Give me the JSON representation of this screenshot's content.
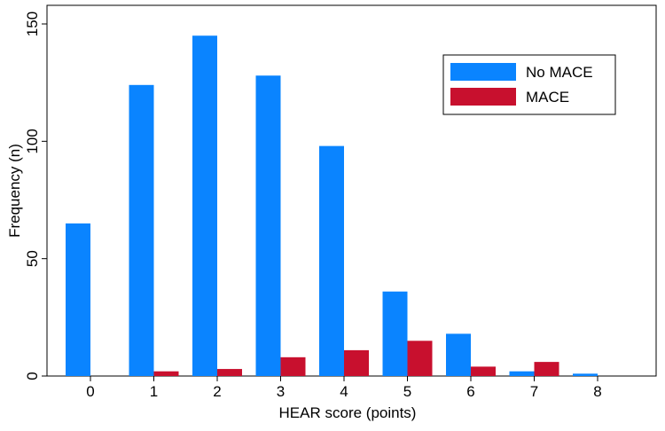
{
  "chart_data": {
    "type": "bar",
    "title": "",
    "xlabel": "HEAR score (points)",
    "ylabel": "Frequency (n)",
    "categories": [
      "0",
      "1",
      "2",
      "3",
      "4",
      "5",
      "6",
      "7",
      "8"
    ],
    "series": [
      {
        "name": "No MACE",
        "color": "#0a84ff",
        "values": [
          65,
          124,
          145,
          128,
          98,
          36,
          18,
          2,
          1
        ]
      },
      {
        "name": "MACE",
        "color": "#c8102e",
        "values": [
          0,
          2,
          3,
          8,
          11,
          15,
          4,
          6,
          0
        ]
      }
    ],
    "yticks": [
      0,
      50,
      100,
      150
    ],
    "ylim": [
      0,
      150
    ],
    "grid": false,
    "legend_position": "top-right"
  }
}
